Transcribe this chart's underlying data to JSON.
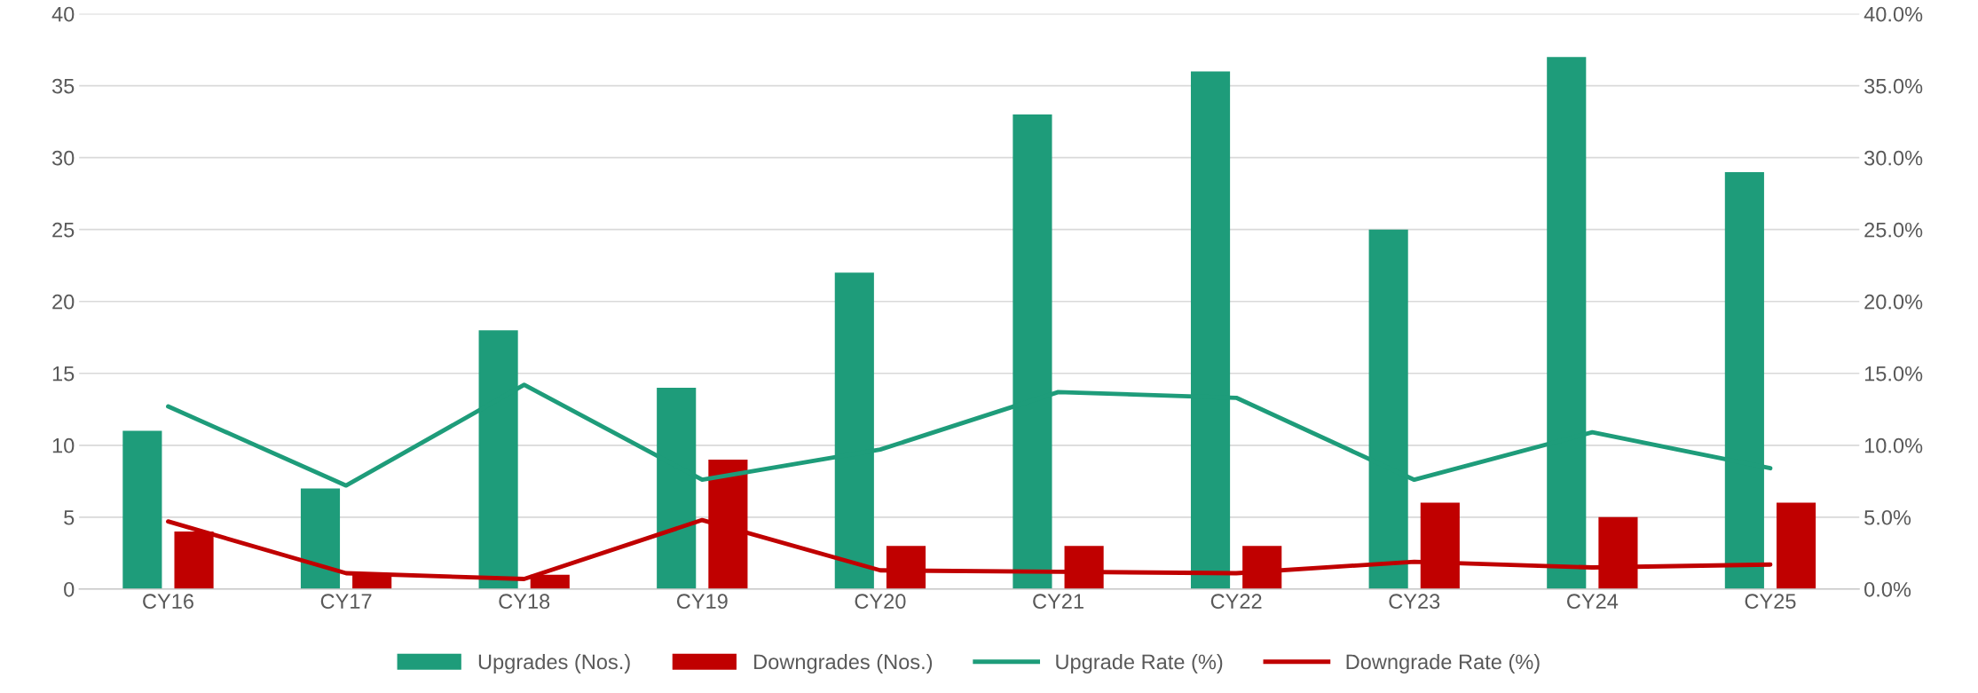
{
  "chart_data": {
    "type": "bar",
    "categories": [
      "CY16",
      "CY17",
      "CY18",
      "CY19",
      "CY20",
      "CY21",
      "CY22",
      "CY23",
      "CY24",
      "CY25"
    ],
    "series": [
      {
        "name": "Upgrades (Nos.)",
        "color": "#1e9c7a",
        "values": [
          11,
          7,
          18,
          14,
          22,
          33,
          36,
          25,
          37,
          29
        ]
      },
      {
        "name": "Downgrades (Nos.)",
        "color": "#c00000",
        "values": [
          4,
          1,
          1,
          9,
          3,
          3,
          3,
          6,
          5,
          6
        ]
      },
      {
        "name": "Upgrade Rate (%)",
        "type": "line",
        "color": "#1e9c7a",
        "values": [
          12.7,
          7.2,
          14.2,
          7.6,
          9.7,
          13.7,
          13.3,
          7.6,
          10.9,
          8.4
        ]
      },
      {
        "name": "Downgrade Rate (%)",
        "type": "line",
        "color": "#c00000",
        "values": [
          4.7,
          1.1,
          0.7,
          4.8,
          1.3,
          1.2,
          1.1,
          1.9,
          1.5,
          1.7
        ]
      }
    ],
    "ylim": [
      0,
      40
    ],
    "yticks": [
      0,
      5,
      10,
      15,
      20,
      25,
      30,
      35,
      40
    ],
    "y2lim": [
      0,
      40
    ],
    "y2ticks": [
      {
        "value": 0,
        "label": "0.0%"
      },
      {
        "value": 5,
        "label": "5.0%"
      },
      {
        "value": 10,
        "label": "10.0%"
      },
      {
        "value": 15,
        "label": "15.0%"
      },
      {
        "value": 20,
        "label": "20.0%"
      },
      {
        "value": 25,
        "label": "25.0%"
      },
      {
        "value": 30,
        "label": "30.0%"
      },
      {
        "value": 35,
        "label": "35.0%"
      },
      {
        "value": 40,
        "label": "40.0%"
      }
    ],
    "grid": "y",
    "legend": "bottom",
    "marker": "none",
    "line_style": "solid"
  }
}
